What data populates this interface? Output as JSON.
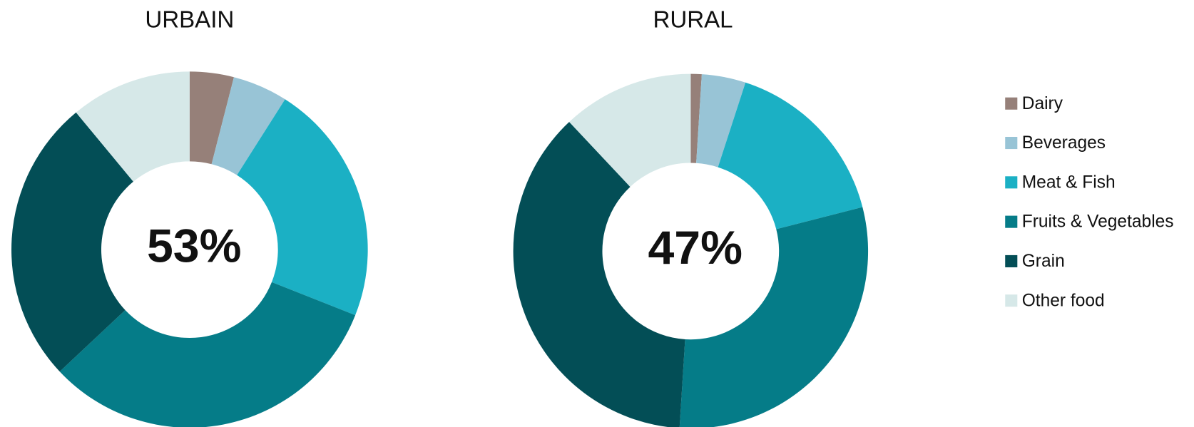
{
  "chart_data": [
    {
      "type": "pie",
      "title": "URBAIN",
      "center_label": "53%",
      "categories": [
        "Dairy",
        "Beverages",
        "Meat & Fish",
        "Fruits & Vegetables",
        "Grain",
        "Other food"
      ],
      "colors": [
        "#968079",
        "#98c4d6",
        "#1bb0c4",
        "#057c88",
        "#034e56",
        "#d6e8e8"
      ],
      "values": [
        4,
        5,
        22,
        32,
        26,
        11
      ]
    },
    {
      "type": "pie",
      "title": "RURAL",
      "center_label": "47%",
      "values": [
        1,
        4,
        16,
        30,
        37,
        12
      ]
    }
  ]
}
